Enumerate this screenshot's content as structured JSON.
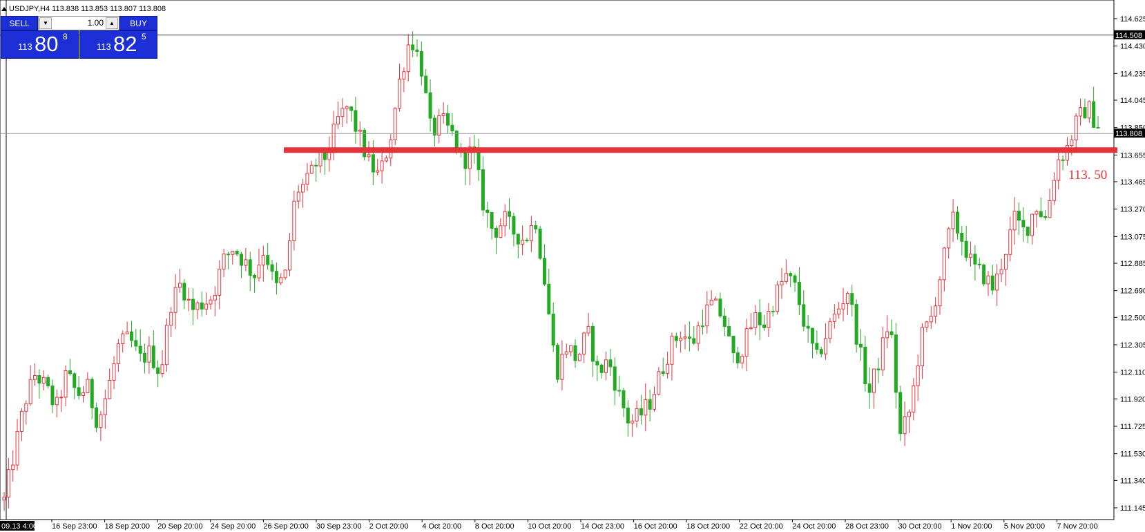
{
  "header": {
    "symbol_text": "USDJPY,H4  113.838 113.853 113.807 113.808"
  },
  "trade_panel": {
    "sell_label": "SELL",
    "buy_label": "BUY",
    "lot": "1.00",
    "sell_price": {
      "prefix": "113",
      "big": "80",
      "sup": "8"
    },
    "buy_price": {
      "prefix": "113",
      "big": "82",
      "sup": "5"
    }
  },
  "annotation": {
    "level_label": "113. 50",
    "color": "#e8323a"
  },
  "crosshair_time_label": "09.13 4:00",
  "colors": {
    "bull": "#e8323a",
    "bear": "#22aa22",
    "grid": "#000000"
  },
  "chart_data": {
    "type": "candlestick",
    "title": "USDJPY,H4",
    "ylim": [
      111.05,
      114.7
    ],
    "y_ticks": [
      "114.625",
      "114.430",
      "114.235",
      "114.045",
      "113.850",
      "113.655",
      "113.465",
      "113.270",
      "113.075",
      "112.885",
      "112.690",
      "112.500",
      "112.305",
      "112.110",
      "111.920",
      "111.725",
      "111.530",
      "111.340",
      "111.145"
    ],
    "x_ticks": [
      "16 Sep 23:00",
      "18 Sep 20:00",
      "20 Sep 20:00",
      "24 Sep 20:00",
      "26 Sep 20:00",
      "30 Sep 23:00",
      "2 Oct 20:00",
      "4 Oct 20:00",
      "8 Oct 20:00",
      "10 Oct 20:00",
      "14 Oct 23:00",
      "16 Oct 20:00",
      "18 Oct 20:00",
      "22 Oct 20:00",
      "24 Oct 20:00",
      "28 Oct 23:00",
      "30 Oct 20:00",
      "1 Nov 20:00",
      "5 Nov 20:00",
      "7 Nov 20:00"
    ],
    "horizontal_lines": [
      {
        "price": 114.508,
        "label": "114.508"
      },
      {
        "price": 113.808,
        "label": "113.808"
      }
    ],
    "support_level": 113.69,
    "close_path": [
      111.2,
      111.55,
      111.9,
      112.1,
      112.0,
      111.85,
      112.1,
      111.95,
      112.0,
      111.75,
      112.0,
      112.3,
      112.35,
      112.2,
      112.25,
      112.1,
      112.6,
      112.75,
      112.55,
      112.6,
      112.65,
      112.9,
      113.0,
      112.9,
      112.8,
      113.0,
      112.7,
      112.8,
      113.4,
      113.45,
      113.6,
      113.65,
      113.9,
      114.0,
      113.8,
      113.6,
      113.5,
      113.75,
      114.2,
      114.5,
      114.3,
      113.8,
      113.9,
      113.8,
      113.6,
      113.7,
      113.3,
      113.1,
      113.2,
      113.1,
      113.05,
      113.2,
      112.7,
      112.1,
      112.3,
      112.2,
      112.4,
      112.1,
      112.2,
      111.95,
      111.75,
      111.8,
      111.9,
      112.1,
      112.3,
      112.4,
      112.3,
      112.5,
      112.6,
      112.5,
      112.2,
      112.3,
      112.5,
      112.45,
      112.65,
      112.8,
      112.7,
      112.4,
      112.2,
      112.4,
      112.55,
      112.7,
      112.3,
      111.95,
      112.2,
      112.5,
      111.65,
      111.85,
      112.35,
      112.5,
      112.85,
      113.2,
      113.05,
      112.85,
      112.8,
      112.7,
      112.95,
      113.2,
      113.1,
      113.3,
      113.2,
      113.6,
      113.7,
      113.9,
      114.0,
      113.85
    ]
  }
}
